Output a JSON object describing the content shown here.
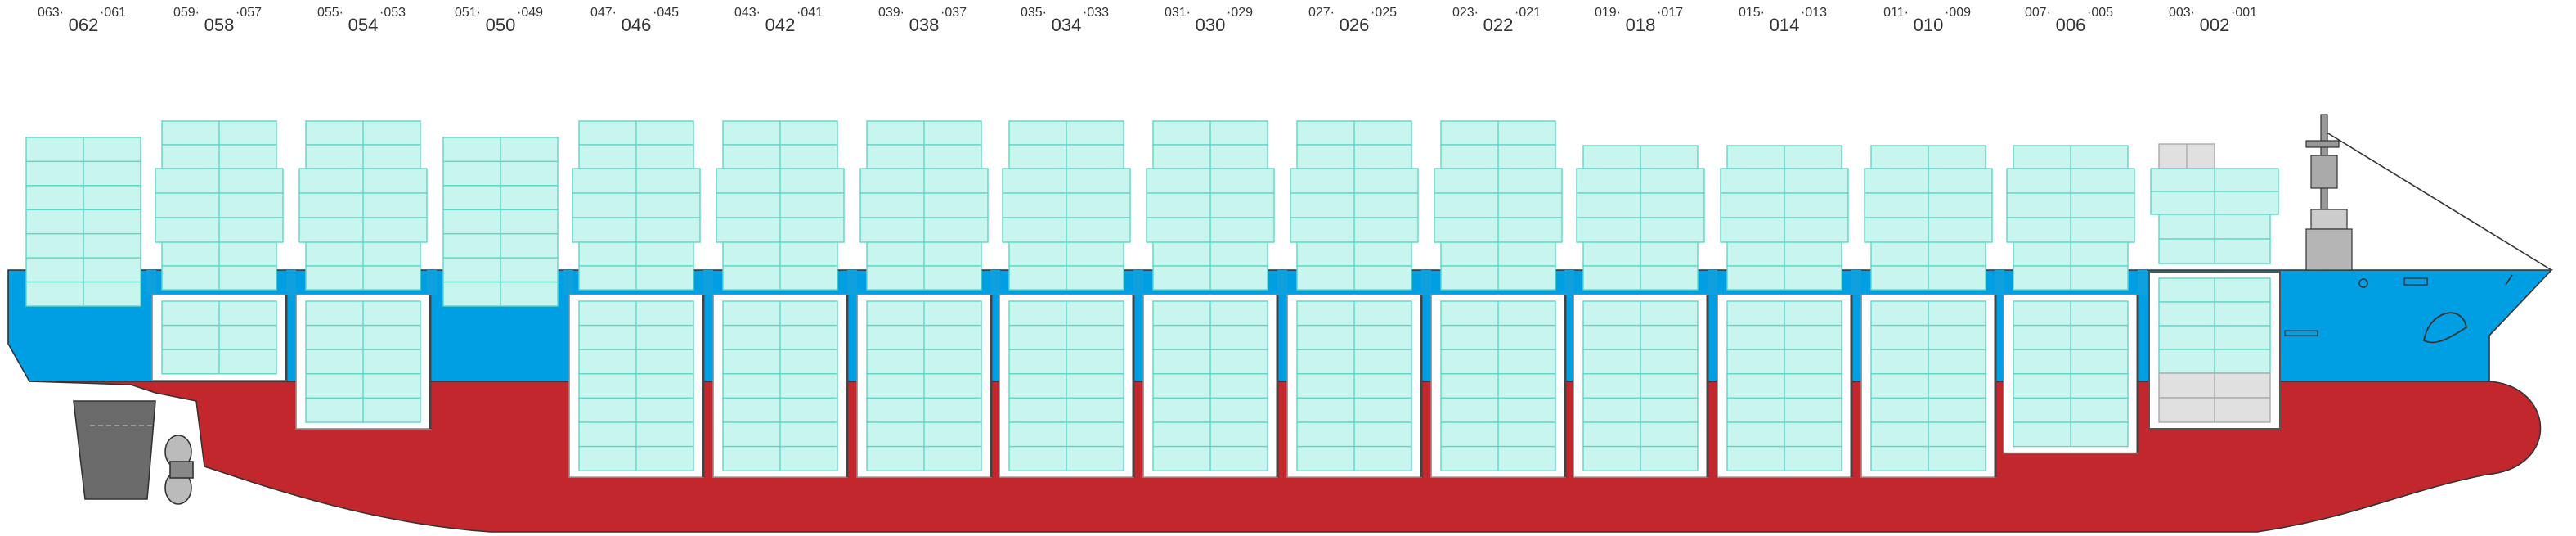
{
  "bays": [
    {
      "left": "063·",
      "right": "·061",
      "bay": "062"
    },
    {
      "left": "059·",
      "right": "·057",
      "bay": "058"
    },
    {
      "left": "055·",
      "right": "·053",
      "bay": "054"
    },
    {
      "left": "051·",
      "right": "·049",
      "bay": "050"
    },
    {
      "left": "047·",
      "right": "·045",
      "bay": "046"
    },
    {
      "left": "043·",
      "right": "·041",
      "bay": "042"
    },
    {
      "left": "039·",
      "right": "·037",
      "bay": "038"
    },
    {
      "left": "035·",
      "right": "·033",
      "bay": "034"
    },
    {
      "left": "031·",
      "right": "·029",
      "bay": "030"
    },
    {
      "left": "027·",
      "right": "·025",
      "bay": "026"
    },
    {
      "left": "023·",
      "right": "·021",
      "bay": "022"
    },
    {
      "left": "019·",
      "right": "·017",
      "bay": "018"
    },
    {
      "left": "015·",
      "right": "·013",
      "bay": "014"
    },
    {
      "left": "011·",
      "right": "·009",
      "bay": "010"
    },
    {
      "left": "007·",
      "right": "·005",
      "bay": "006"
    },
    {
      "left": "003·",
      "right": "·001",
      "bay": "002"
    }
  ]
}
